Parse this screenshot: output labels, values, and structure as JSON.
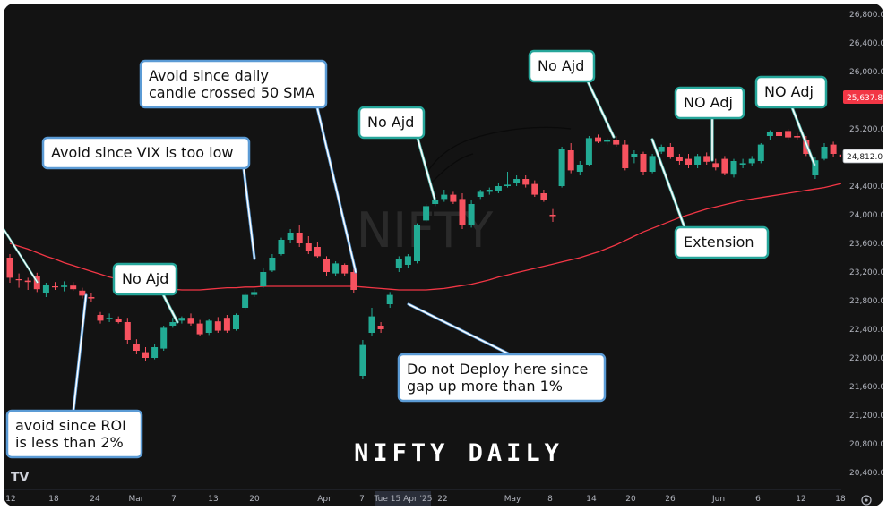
{
  "chart_data": {
    "type": "candlestick",
    "title": "NIFTY DAILY",
    "watermark": "NIFTY",
    "ylim": [
      20100,
      26850
    ],
    "y_ticks": [
      20400,
      20800,
      21200,
      21600,
      22000,
      22400,
      22800,
      23200,
      23600,
      24000,
      24400,
      24800,
      25200,
      25600,
      26000,
      26400,
      26800
    ],
    "y_tick_labels": [
      "20,400.00",
      "20,800.00",
      "21,200.00",
      "21,600.00",
      "22,000.00",
      "22,400.00",
      "22,800.00",
      "23,200.00",
      "23,600.00",
      "24,000.00",
      "24,400.00",
      "24,800.00",
      "25,200.00",
      "25,600.00",
      "26,000.00",
      "26,400.00",
      "26,800.00"
    ],
    "x_tick_labels": [
      "12",
      "18",
      "24",
      "Mar",
      "7",
      "13",
      "20",
      "Apr",
      "7",
      "Tue 15 Apr '25",
      "22",
      "May",
      "8",
      "14",
      "20",
      "26",
      "Jun",
      "6",
      "12",
      "18"
    ],
    "highlighted_x_label": "Tue 15 Apr '25",
    "price_tags": [
      {
        "label": "25,637.80",
        "value": 25637.8,
        "color": "#f23645",
        "style": "filled"
      },
      {
        "label": "24,812.05",
        "value": 24812.05,
        "color": "#ffffff",
        "style": "outline"
      }
    ],
    "candles": [
      {
        "o": 23400,
        "h": 23450,
        "l": 23050,
        "c": 23120
      },
      {
        "o": 23100,
        "h": 23180,
        "l": 22980,
        "c": 23090
      },
      {
        "o": 23080,
        "h": 23120,
        "l": 22950,
        "c": 23060
      },
      {
        "o": 23150,
        "h": 23190,
        "l": 22920,
        "c": 22960
      },
      {
        "o": 22900,
        "h": 23050,
        "l": 22850,
        "c": 23020
      },
      {
        "o": 23000,
        "h": 23060,
        "l": 22950,
        "c": 22990
      },
      {
        "o": 22990,
        "h": 23070,
        "l": 22930,
        "c": 23010
      },
      {
        "o": 23010,
        "h": 23060,
        "l": 22940,
        "c": 22960
      },
      {
        "o": 22940,
        "h": 22980,
        "l": 22830,
        "c": 22870
      },
      {
        "o": 22850,
        "h": 22900,
        "l": 22780,
        "c": 22830
      },
      {
        "o": 22600,
        "h": 22640,
        "l": 22480,
        "c": 22520
      },
      {
        "o": 22540,
        "h": 22620,
        "l": 22500,
        "c": 22560
      },
      {
        "o": 22540,
        "h": 22580,
        "l": 22480,
        "c": 22500
      },
      {
        "o": 22500,
        "h": 22560,
        "l": 22200,
        "c": 22250
      },
      {
        "o": 22200,
        "h": 22260,
        "l": 22050,
        "c": 22100
      },
      {
        "o": 22080,
        "h": 22150,
        "l": 21950,
        "c": 22000
      },
      {
        "o": 22000,
        "h": 22200,
        "l": 21980,
        "c": 22150
      },
      {
        "o": 22130,
        "h": 22450,
        "l": 22100,
        "c": 22420
      },
      {
        "o": 22450,
        "h": 22560,
        "l": 22420,
        "c": 22500
      },
      {
        "o": 22520,
        "h": 22580,
        "l": 22480,
        "c": 22560
      },
      {
        "o": 22560,
        "h": 22620,
        "l": 22450,
        "c": 22480
      },
      {
        "o": 22480,
        "h": 22530,
        "l": 22300,
        "c": 22330
      },
      {
        "o": 22350,
        "h": 22550,
        "l": 22320,
        "c": 22520
      },
      {
        "o": 22510,
        "h": 22570,
        "l": 22350,
        "c": 22380
      },
      {
        "o": 22560,
        "h": 22600,
        "l": 22350,
        "c": 22380
      },
      {
        "o": 22400,
        "h": 22620,
        "l": 22380,
        "c": 22600
      },
      {
        "o": 22700,
        "h": 22900,
        "l": 22680,
        "c": 22880
      },
      {
        "o": 22880,
        "h": 22960,
        "l": 22850,
        "c": 22920
      },
      {
        "o": 23000,
        "h": 23250,
        "l": 22980,
        "c": 23200
      },
      {
        "o": 23220,
        "h": 23450,
        "l": 23200,
        "c": 23400
      },
      {
        "o": 23450,
        "h": 23680,
        "l": 23430,
        "c": 23650
      },
      {
        "o": 23650,
        "h": 23800,
        "l": 23600,
        "c": 23750
      },
      {
        "o": 23750,
        "h": 23850,
        "l": 23550,
        "c": 23600
      },
      {
        "o": 23600,
        "h": 23700,
        "l": 23450,
        "c": 23500
      },
      {
        "o": 23550,
        "h": 23620,
        "l": 23400,
        "c": 23420
      },
      {
        "o": 23380,
        "h": 23420,
        "l": 23150,
        "c": 23200
      },
      {
        "o": 23180,
        "h": 23350,
        "l": 23150,
        "c": 23320
      },
      {
        "o": 23300,
        "h": 23320,
        "l": 23150,
        "c": 23180
      },
      {
        "o": 23200,
        "h": 23250,
        "l": 22900,
        "c": 22950
      },
      {
        "o": 21750,
        "h": 22250,
        "l": 21700,
        "c": 22180
      },
      {
        "o": 22350,
        "h": 22700,
        "l": 22300,
        "c": 22580
      },
      {
        "o": 22450,
        "h": 22500,
        "l": 22350,
        "c": 22400
      },
      {
        "o": 22750,
        "h": 22920,
        "l": 22700,
        "c": 22880
      },
      {
        "o": 23250,
        "h": 23420,
        "l": 23200,
        "c": 23380
      },
      {
        "o": 23300,
        "h": 23450,
        "l": 23250,
        "c": 23420
      },
      {
        "o": 23350,
        "h": 23880,
        "l": 23320,
        "c": 23850
      },
      {
        "o": 23920,
        "h": 24150,
        "l": 23900,
        "c": 24120
      },
      {
        "o": 24150,
        "h": 24250,
        "l": 24120,
        "c": 24200
      },
      {
        "o": 24220,
        "h": 24350,
        "l": 24180,
        "c": 24280
      },
      {
        "o": 24280,
        "h": 24320,
        "l": 24150,
        "c": 24180
      },
      {
        "o": 24220,
        "h": 24300,
        "l": 23800,
        "c": 23850
      },
      {
        "o": 23850,
        "h": 24200,
        "l": 23820,
        "c": 24150
      },
      {
        "o": 24250,
        "h": 24350,
        "l": 24220,
        "c": 24320
      },
      {
        "o": 24320,
        "h": 24380,
        "l": 24280,
        "c": 24350
      },
      {
        "o": 24330,
        "h": 24450,
        "l": 24300,
        "c": 24400
      },
      {
        "o": 24400,
        "h": 24600,
        "l": 24380,
        "c": 24420
      },
      {
        "o": 24450,
        "h": 24550,
        "l": 24400,
        "c": 24500
      },
      {
        "o": 24500,
        "h": 24550,
        "l": 24380,
        "c": 24420
      },
      {
        "o": 24430,
        "h": 24480,
        "l": 24250,
        "c": 24280
      },
      {
        "o": 24300,
        "h": 24350,
        "l": 24180,
        "c": 24200
      },
      {
        "o": 24000,
        "h": 24080,
        "l": 23900,
        "c": 23980
      },
      {
        "o": 24400,
        "h": 24950,
        "l": 24380,
        "c": 24920
      },
      {
        "o": 24900,
        "h": 25000,
        "l": 24580,
        "c": 24620
      },
      {
        "o": 24600,
        "h": 24750,
        "l": 24550,
        "c": 24700
      },
      {
        "o": 24700,
        "h": 25100,
        "l": 24680,
        "c": 25070
      },
      {
        "o": 25080,
        "h": 25120,
        "l": 25000,
        "c": 25020
      },
      {
        "o": 25020,
        "h": 25070,
        "l": 24980,
        "c": 25040
      },
      {
        "o": 25050,
        "h": 25100,
        "l": 24950,
        "c": 24980
      },
      {
        "o": 24980,
        "h": 25050,
        "l": 24620,
        "c": 24650
      },
      {
        "o": 24800,
        "h": 24900,
        "l": 24720,
        "c": 24850
      },
      {
        "o": 24850,
        "h": 24880,
        "l": 24550,
        "c": 24600
      },
      {
        "o": 24600,
        "h": 24850,
        "l": 24580,
        "c": 24820
      },
      {
        "o": 24880,
        "h": 24980,
        "l": 24850,
        "c": 24950
      },
      {
        "o": 24950,
        "h": 25000,
        "l": 24780,
        "c": 24800
      },
      {
        "o": 24800,
        "h": 24850,
        "l": 24700,
        "c": 24750
      },
      {
        "o": 24780,
        "h": 24850,
        "l": 24650,
        "c": 24700
      },
      {
        "o": 24700,
        "h": 24850,
        "l": 24650,
        "c": 24820
      },
      {
        "o": 24820,
        "h": 24870,
        "l": 24700,
        "c": 24740
      },
      {
        "o": 24720,
        "h": 24780,
        "l": 24620,
        "c": 24660
      },
      {
        "o": 24780,
        "h": 24820,
        "l": 24550,
        "c": 24580
      },
      {
        "o": 24560,
        "h": 24780,
        "l": 24520,
        "c": 24750
      },
      {
        "o": 24700,
        "h": 24780,
        "l": 24650,
        "c": 24720
      },
      {
        "o": 24720,
        "h": 24820,
        "l": 24680,
        "c": 24780
      },
      {
        "o": 24750,
        "h": 25000,
        "l": 24720,
        "c": 24980
      },
      {
        "o": 25100,
        "h": 25180,
        "l": 25050,
        "c": 25150
      },
      {
        "o": 25150,
        "h": 25200,
        "l": 25080,
        "c": 25100
      },
      {
        "o": 25170,
        "h": 25200,
        "l": 25050,
        "c": 25080
      },
      {
        "o": 25100,
        "h": 25140,
        "l": 25050,
        "c": 25080
      },
      {
        "o": 25050,
        "h": 25100,
        "l": 24820,
        "c": 24850
      },
      {
        "o": 24550,
        "h": 24800,
        "l": 24500,
        "c": 24760
      },
      {
        "o": 24780,
        "h": 25000,
        "l": 24760,
        "c": 24950
      },
      {
        "o": 24980,
        "h": 25020,
        "l": 24800,
        "c": 24850
      },
      {
        "o": 24840,
        "h": 24900,
        "l": 24760,
        "c": 24812
      }
    ],
    "sma": {
      "label": "50 SMA",
      "color": "#f23645",
      "values": [
        23600,
        23560,
        23520,
        23470,
        23420,
        23380,
        23330,
        23290,
        23250,
        23210,
        23170,
        23130,
        23100,
        23070,
        23040,
        23010,
        22990,
        22970,
        22960,
        22950,
        22950,
        22950,
        22960,
        22970,
        22980,
        22980,
        22990,
        22990,
        23000,
        23000,
        23000,
        23000,
        23000,
        23000,
        23000,
        23000,
        23000,
        23000,
        23000,
        22990,
        22980,
        22970,
        22960,
        22950,
        22950,
        22950,
        22950,
        22960,
        22970,
        22990,
        23010,
        23030,
        23060,
        23090,
        23130,
        23160,
        23190,
        23220,
        23250,
        23280,
        23310,
        23340,
        23370,
        23400,
        23440,
        23480,
        23530,
        23580,
        23640,
        23700,
        23760,
        23810,
        23860,
        23910,
        23960,
        24000,
        24040,
        24080,
        24110,
        24140,
        24170,
        24200,
        24220,
        24240,
        24260,
        24280,
        24300,
        24320,
        24340,
        24360,
        24380,
        24410,
        24440
      ]
    },
    "annotations": [
      {
        "lines": [
          "No Ajd"
        ]
      },
      {
        "lines": [
          "Avoid since VIX is too low"
        ]
      },
      {
        "lines": [
          "Avoid since daily",
          "candle crossed 50 SMA"
        ]
      },
      {
        "lines": [
          "No Ajd"
        ]
      },
      {
        "lines": [
          "No Ajd"
        ]
      },
      {
        "lines": [
          "NO Adj"
        ]
      },
      {
        "lines": [
          "NO Adj"
        ]
      },
      {
        "lines": [
          "Extension"
        ]
      },
      {
        "lines": [
          "Do not Deploy here since",
          "gap up more than 1%"
        ]
      },
      {
        "lines": [
          "avoid since ROI",
          "is less than 2%"
        ]
      }
    ]
  },
  "colors": {
    "background": "#131313",
    "up": "#22ab94",
    "down": "#f7525f",
    "callout_border": "#26a69a",
    "callout_arrow": "#ffffff",
    "callout_arrow_blue": "#5b9bd5"
  },
  "logo": "TV"
}
